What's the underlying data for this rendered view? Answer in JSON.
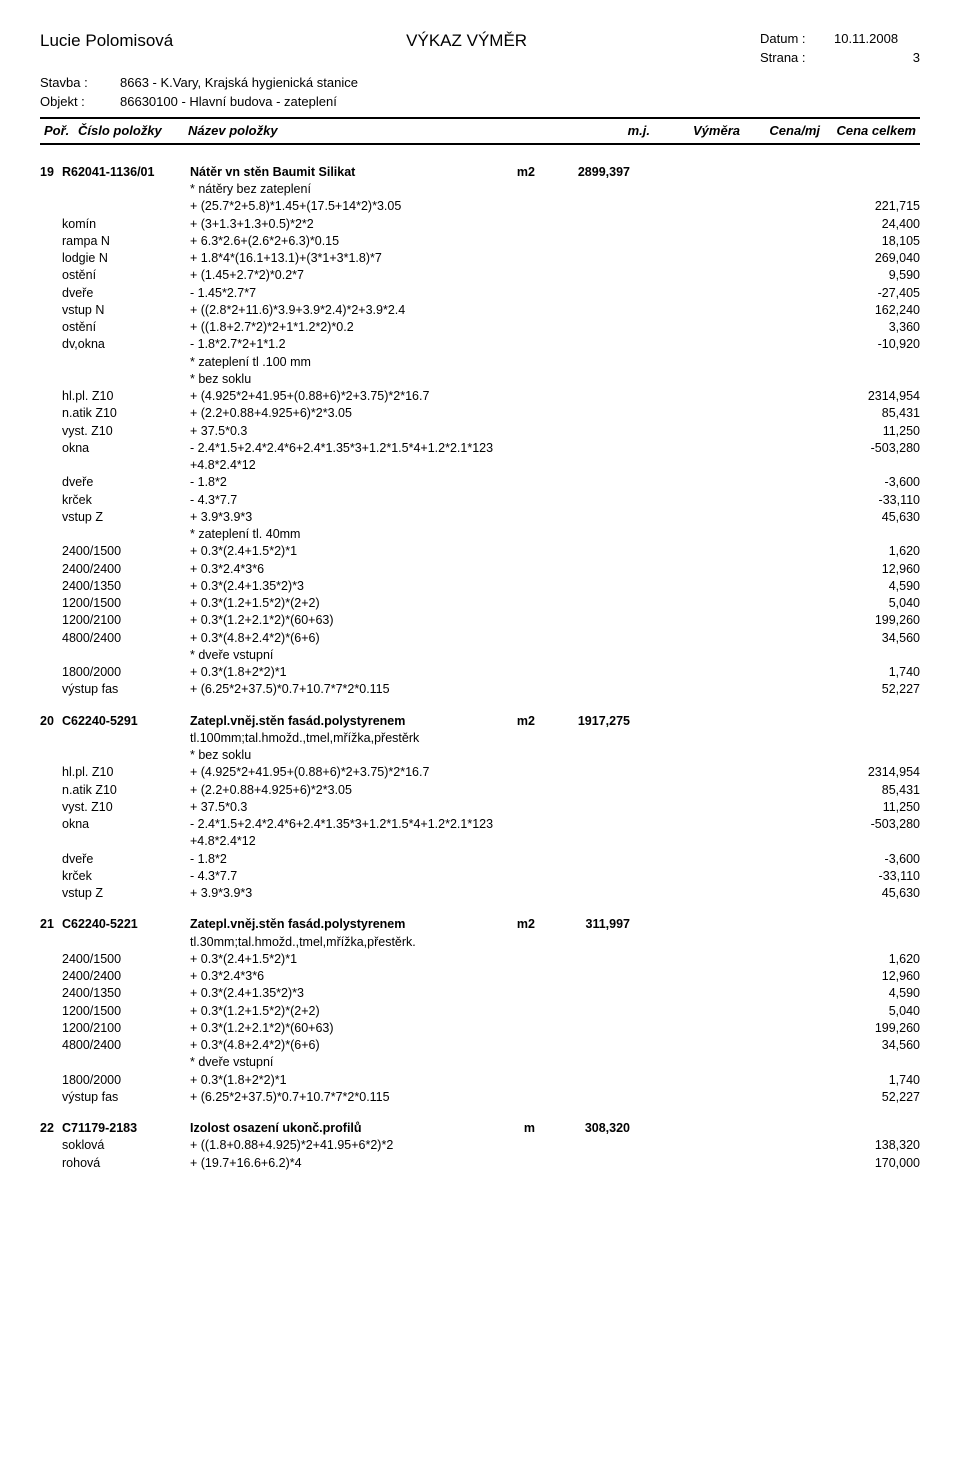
{
  "header": {
    "author": "Lucie Polomisová",
    "title": "VÝKAZ VÝMĚR",
    "date_label": "Datum :",
    "date_value": "10.11.2008",
    "page_label": "Strana :",
    "page_value": "3",
    "stavba_label": "Stavba :",
    "stavba_value": "8663 - K.Vary, Krajská hygienická stanice",
    "objekt_label": "Objekt :",
    "objekt_value": "86630100 - Hlavní budova - zateplení"
  },
  "columns": {
    "c1": "Poř.",
    "c2": "Číslo položky",
    "c3": "Název položky",
    "c4": "m.j.",
    "c5": "Výměra",
    "c6": "Cena/mj",
    "c7": "Cena celkem"
  },
  "items": [
    {
      "idx": "19",
      "code": "R62041-1136/01",
      "name": "Nátěr vn stěn Baumit Silikat",
      "unit": "m2",
      "total": "2899,397",
      "notes_top": [
        "* nátěry bez zateplení"
      ],
      "rows": [
        {
          "lab": "",
          "expr": "+ (25.7*2+5.8)*1.45+(17.5+14*2)*3.05",
          "val": "221,715"
        },
        {
          "lab": "komín",
          "expr": "+ (3+1.3+1.3+0.5)*2*2",
          "val": "24,400"
        },
        {
          "lab": "rampa N",
          "expr": "+ 6.3*2.6+(2.6*2+6.3)*0.15",
          "val": "18,105"
        },
        {
          "lab": "lodgie N",
          "expr": "+ 1.8*4*(16.1+13.1)+(3*1+3*1.8)*7",
          "val": "269,040"
        },
        {
          "lab": "ostění",
          "expr": "+ (1.45+2.7*2)*0.2*7",
          "val": "9,590"
        },
        {
          "lab": "dveře",
          "expr": "- 1.45*2.7*7",
          "val": "-27,405"
        },
        {
          "lab": "vstup N",
          "expr": "+ ((2.8*2+11.6)*3.9+3.9*2.4)*2+3.9*2.4",
          "val": "162,240"
        },
        {
          "lab": "ostění",
          "expr": "+ ((1.8+2.7*2)*2+1*1.2*2)*0.2",
          "val": "3,360"
        },
        {
          "lab": "dv,okna",
          "expr": "- 1.8*2.7*2+1*1.2",
          "val": "-10,920"
        }
      ],
      "notes_mid": [
        "* zateplení tl .100 mm",
        "* bez soklu"
      ],
      "rows2": [
        {
          "lab": "hl.pl. Z10",
          "expr": "+ (4.925*2+41.95+(0.88+6)*2+3.75)*2*16.7",
          "val": "2314,954"
        },
        {
          "lab": "n.atik Z10",
          "expr": "+ (2.2+0.88+4.925+6)*2*3.05",
          "val": "85,431"
        },
        {
          "lab": "vyst. Z10",
          "expr": "+ 37.5*0.3",
          "val": "11,250"
        },
        {
          "lab": "okna",
          "expr": "- 2.4*1.5+2.4*2.4*6+2.4*1.35*3+1.2*1.5*4+1.2*2.1*123\n+4.8*2.4*12",
          "val": "-503,280"
        },
        {
          "lab": "dveře",
          "expr": "- 1.8*2",
          "val": "-3,600"
        },
        {
          "lab": "krček",
          "expr": "- 4.3*7.7",
          "val": "-33,110"
        },
        {
          "lab": "vstup Z",
          "expr": "+ 3.9*3.9*3",
          "val": "45,630"
        }
      ],
      "notes_mid2": [
        "* zateplení tl. 40mm"
      ],
      "rows3": [
        {
          "lab": "2400/1500",
          "expr": "+ 0.3*(2.4+1.5*2)*1",
          "val": "1,620"
        },
        {
          "lab": "2400/2400",
          "expr": "+ 0.3*2.4*3*6",
          "val": "12,960"
        },
        {
          "lab": "2400/1350",
          "expr": "+ 0.3*(2.4+1.35*2)*3",
          "val": "4,590"
        },
        {
          "lab": "1200/1500",
          "expr": "+ 0.3*(1.2+1.5*2)*(2+2)",
          "val": "5,040"
        },
        {
          "lab": "1200/2100",
          "expr": "+ 0.3*(1.2+2.1*2)*(60+63)",
          "val": "199,260"
        },
        {
          "lab": "4800/2400",
          "expr": "+ 0.3*(4.8+2.4*2)*(6+6)",
          "val": "34,560"
        }
      ],
      "notes_mid3": [
        "* dveře vstupní"
      ],
      "rows4": [
        {
          "lab": "1800/2000",
          "expr": "+ 0.3*(1.8+2*2)*1",
          "val": "1,740"
        },
        {
          "lab": "výstup fas",
          "expr": "+ (6.25*2+37.5)*0.7+10.7*7*2*0.115",
          "val": "52,227"
        }
      ]
    },
    {
      "idx": "20",
      "code": "C62240-5291",
      "name": "Zatepl.vněj.stěn fasád.polystyrenem",
      "unit": "m2",
      "total": "1917,275",
      "sub": "tl.100mm;tal.hmožd.,tmel,mřížka,přestěrk",
      "notes_top": [
        "* bez soklu"
      ],
      "rows": [
        {
          "lab": "hl.pl. Z10",
          "expr": "+ (4.925*2+41.95+(0.88+6)*2+3.75)*2*16.7",
          "val": "2314,954"
        },
        {
          "lab": "n.atik Z10",
          "expr": "+ (2.2+0.88+4.925+6)*2*3.05",
          "val": "85,431"
        },
        {
          "lab": "vyst. Z10",
          "expr": "+ 37.5*0.3",
          "val": "11,250"
        },
        {
          "lab": "okna",
          "expr": "- 2.4*1.5+2.4*2.4*6+2.4*1.35*3+1.2*1.5*4+1.2*2.1*123\n+4.8*2.4*12",
          "val": "-503,280"
        },
        {
          "lab": "dveře",
          "expr": "- 1.8*2",
          "val": "-3,600"
        },
        {
          "lab": "krček",
          "expr": "- 4.3*7.7",
          "val": "-33,110"
        },
        {
          "lab": "vstup Z",
          "expr": "+ 3.9*3.9*3",
          "val": "45,630"
        }
      ]
    },
    {
      "idx": "21",
      "code": "C62240-5221",
      "name": "Zatepl.vněj.stěn fasád.polystyrenem",
      "unit": "m2",
      "total": "311,997",
      "sub": "tl.30mm;tal.hmožd.,tmel,mřížka,přestěrk.",
      "rows": [
        {
          "lab": "2400/1500",
          "expr": "+ 0.3*(2.4+1.5*2)*1",
          "val": "1,620"
        },
        {
          "lab": "2400/2400",
          "expr": "+ 0.3*2.4*3*6",
          "val": "12,960"
        },
        {
          "lab": "2400/1350",
          "expr": "+ 0.3*(2.4+1.35*2)*3",
          "val": "4,590"
        },
        {
          "lab": "1200/1500",
          "expr": "+ 0.3*(1.2+1.5*2)*(2+2)",
          "val": "5,040"
        },
        {
          "lab": "1200/2100",
          "expr": "+ 0.3*(1.2+2.1*2)*(60+63)",
          "val": "199,260"
        },
        {
          "lab": "4800/2400",
          "expr": "+ 0.3*(4.8+2.4*2)*(6+6)",
          "val": "34,560"
        }
      ],
      "notes_mid": [
        "* dveře vstupní"
      ],
      "rows2": [
        {
          "lab": "1800/2000",
          "expr": "+ 0.3*(1.8+2*2)*1",
          "val": "1,740"
        },
        {
          "lab": "výstup fas",
          "expr": "+ (6.25*2+37.5)*0.7+10.7*7*2*0.115",
          "val": "52,227"
        }
      ]
    },
    {
      "idx": "22",
      "code": "C71179-2183",
      "name": "Izolost osazení ukonč.profilů",
      "unit": "m",
      "total": "308,320",
      "rows": [
        {
          "lab": "soklová",
          "expr": "+ ((1.8+0.88+4.925)*2+41.95+6*2)*2",
          "val": "138,320"
        },
        {
          "lab": "rohová",
          "expr": "+ (19.7+16.6+6.2)*4",
          "val": "170,000"
        }
      ]
    }
  ]
}
